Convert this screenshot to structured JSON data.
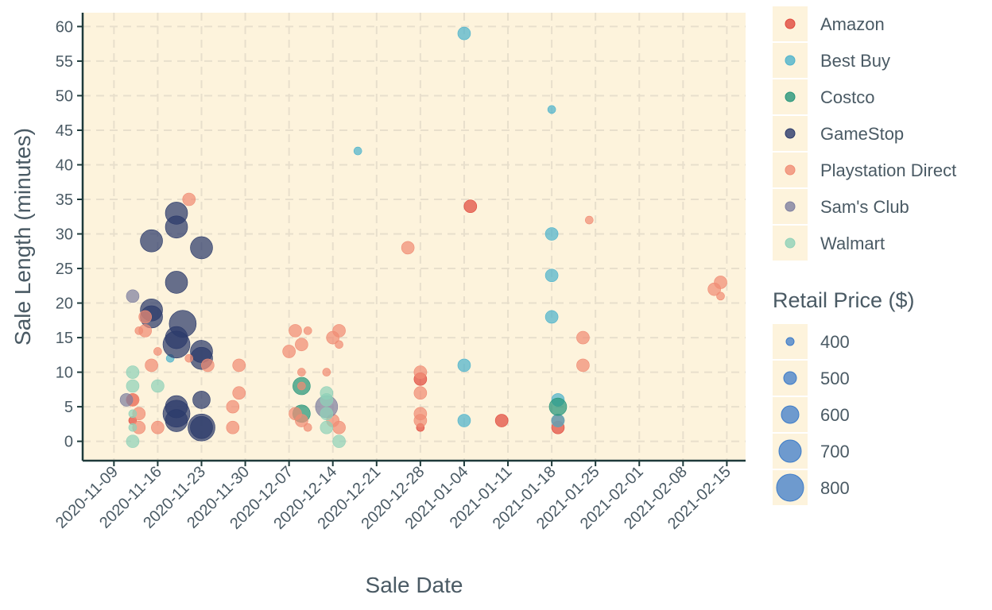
{
  "chart_data": {
    "type": "scatter",
    "title": "",
    "xlabel": "Sale Date",
    "ylabel": "Sale Length (minutes)",
    "x_type": "date",
    "xlim": [
      "2020-11-04",
      "2021-02-18"
    ],
    "ylim": [
      -2.8,
      62
    ],
    "x_ticks": [
      "2020-11-09",
      "2020-11-16",
      "2020-11-23",
      "2020-11-30",
      "2020-12-07",
      "2020-12-14",
      "2020-12-21",
      "2020-12-28",
      "2021-01-04",
      "2021-01-11",
      "2021-01-18",
      "2021-01-25",
      "2021-02-01",
      "2021-02-08",
      "2021-02-15"
    ],
    "y_ticks": [
      0,
      5,
      10,
      15,
      20,
      25,
      30,
      35,
      40,
      45,
      50,
      55,
      60
    ],
    "grid": true,
    "legend_position": "right",
    "color_legend_title": "",
    "size_legend_title": "Retail Price ($)",
    "size_legend": [
      400,
      500,
      600,
      700,
      800
    ],
    "size_legend_color": "#3d7cc9",
    "background_color": "#fdf3dc",
    "series": [
      {
        "name": "Amazon",
        "color": "#e0493d",
        "points": [
          {
            "x": "2020-11-12",
            "y": 6,
            "price": 500
          },
          {
            "x": "2020-11-12",
            "y": 3,
            "price": 400
          },
          {
            "x": "2020-12-28",
            "y": 9,
            "price": 500
          },
          {
            "x": "2020-12-28",
            "y": 2,
            "price": 400
          },
          {
            "x": "2021-01-05",
            "y": 34,
            "price": 500
          },
          {
            "x": "2021-01-10",
            "y": 3,
            "price": 500
          },
          {
            "x": "2021-01-19",
            "y": 3,
            "price": 500
          },
          {
            "x": "2021-01-19",
            "y": 2,
            "price": 500
          }
        ]
      },
      {
        "name": "Best Buy",
        "color": "#4db3cc",
        "points": [
          {
            "x": "2021-01-04",
            "y": 59,
            "price": 500
          },
          {
            "x": "2020-12-18",
            "y": 42,
            "price": 400
          },
          {
            "x": "2021-01-18",
            "y": 48,
            "price": 400
          },
          {
            "x": "2021-01-18",
            "y": 30,
            "price": 500
          },
          {
            "x": "2021-01-18",
            "y": 24,
            "price": 500
          },
          {
            "x": "2021-01-18",
            "y": 18,
            "price": 500
          },
          {
            "x": "2021-01-04",
            "y": 11,
            "price": 500
          },
          {
            "x": "2021-01-04",
            "y": 3,
            "price": 500
          },
          {
            "x": "2021-01-19",
            "y": 6,
            "price": 500
          },
          {
            "x": "2021-01-19",
            "y": 3,
            "price": 500
          },
          {
            "x": "2020-11-18",
            "y": 12,
            "price": 400
          }
        ]
      },
      {
        "name": "Costco",
        "color": "#26957a",
        "points": [
          {
            "x": "2020-12-09",
            "y": 8,
            "price": 600
          },
          {
            "x": "2020-12-09",
            "y": 4,
            "price": 600
          },
          {
            "x": "2021-01-19",
            "y": 5,
            "price": 600
          }
        ]
      },
      {
        "name": "GameStop",
        "color": "#2b3a6b",
        "points": [
          {
            "x": "2020-11-19",
            "y": 33,
            "price": 700
          },
          {
            "x": "2020-11-19",
            "y": 31,
            "price": 700
          },
          {
            "x": "2020-11-15",
            "y": 29,
            "price": 700
          },
          {
            "x": "2020-11-23",
            "y": 28,
            "price": 700
          },
          {
            "x": "2020-11-19",
            "y": 23,
            "price": 700
          },
          {
            "x": "2020-11-15",
            "y": 19,
            "price": 700
          },
          {
            "x": "2020-11-15",
            "y": 18,
            "price": 700
          },
          {
            "x": "2020-11-20",
            "y": 17,
            "price": 800
          },
          {
            "x": "2020-11-19",
            "y": 15,
            "price": 700
          },
          {
            "x": "2020-11-19",
            "y": 14,
            "price": 800
          },
          {
            "x": "2020-11-23",
            "y": 13,
            "price": 700
          },
          {
            "x": "2020-11-23",
            "y": 12,
            "price": 700
          },
          {
            "x": "2020-11-23",
            "y": 6,
            "price": 600
          },
          {
            "x": "2020-11-19",
            "y": 5,
            "price": 700
          },
          {
            "x": "2020-11-19",
            "y": 4,
            "price": 800
          },
          {
            "x": "2020-11-19",
            "y": 3,
            "price": 700
          },
          {
            "x": "2020-11-23",
            "y": 2,
            "price": 800
          },
          {
            "x": "2020-11-23",
            "y": 2,
            "price": 700
          }
        ]
      },
      {
        "name": "Playstation Direct",
        "color": "#f08c74",
        "points": [
          {
            "x": "2020-11-21",
            "y": 35,
            "price": 500
          },
          {
            "x": "2020-12-26",
            "y": 28,
            "price": 500
          },
          {
            "x": "2021-01-24",
            "y": 32,
            "price": 400
          },
          {
            "x": "2021-02-13",
            "y": 22,
            "price": 500
          },
          {
            "x": "2021-02-14",
            "y": 23,
            "price": 500
          },
          {
            "x": "2021-02-14",
            "y": 21,
            "price": 400
          },
          {
            "x": "2020-11-14",
            "y": 18,
            "price": 500
          },
          {
            "x": "2020-11-13",
            "y": 16,
            "price": 400
          },
          {
            "x": "2020-11-14",
            "y": 16,
            "price": 500
          },
          {
            "x": "2020-11-16",
            "y": 13,
            "price": 400
          },
          {
            "x": "2020-11-21",
            "y": 12,
            "price": 400
          },
          {
            "x": "2020-11-15",
            "y": 11,
            "price": 500
          },
          {
            "x": "2020-11-24",
            "y": 11,
            "price": 500
          },
          {
            "x": "2020-11-29",
            "y": 11,
            "price": 500
          },
          {
            "x": "2020-12-08",
            "y": 16,
            "price": 500
          },
          {
            "x": "2020-12-10",
            "y": 16,
            "price": 400
          },
          {
            "x": "2020-12-09",
            "y": 14,
            "price": 500
          },
          {
            "x": "2020-12-07",
            "y": 13,
            "price": 500
          },
          {
            "x": "2020-12-15",
            "y": 16,
            "price": 500
          },
          {
            "x": "2020-12-14",
            "y": 15,
            "price": 500
          },
          {
            "x": "2020-12-15",
            "y": 14,
            "price": 400
          },
          {
            "x": "2020-12-13",
            "y": 10,
            "price": 400
          },
          {
            "x": "2020-12-09",
            "y": 10,
            "price": 400
          },
          {
            "x": "2020-12-09",
            "y": 8,
            "price": 400
          },
          {
            "x": "2020-11-29",
            "y": 7,
            "price": 500
          },
          {
            "x": "2020-11-28",
            "y": 5,
            "price": 500
          },
          {
            "x": "2020-11-28",
            "y": 2,
            "price": 500
          },
          {
            "x": "2020-12-08",
            "y": 4,
            "price": 500
          },
          {
            "x": "2020-12-09",
            "y": 3,
            "price": 500
          },
          {
            "x": "2020-12-10",
            "y": 2,
            "price": 400
          },
          {
            "x": "2020-12-14",
            "y": 3,
            "price": 500
          },
          {
            "x": "2020-12-15",
            "y": 2,
            "price": 500
          },
          {
            "x": "2020-11-16",
            "y": 2,
            "price": 500
          },
          {
            "x": "2020-11-12",
            "y": 6,
            "price": 500
          },
          {
            "x": "2020-11-13",
            "y": 4,
            "price": 500
          },
          {
            "x": "2020-11-13",
            "y": 2,
            "price": 500
          },
          {
            "x": "2020-12-28",
            "y": 10,
            "price": 500
          },
          {
            "x": "2020-12-28",
            "y": 7,
            "price": 500
          },
          {
            "x": "2020-12-28",
            "y": 4,
            "price": 500
          },
          {
            "x": "2020-12-28",
            "y": 3,
            "price": 500
          },
          {
            "x": "2021-01-23",
            "y": 15,
            "price": 500
          },
          {
            "x": "2021-01-23",
            "y": 11,
            "price": 500
          }
        ]
      },
      {
        "name": "Sam's Club",
        "color": "#7e7fa0",
        "points": [
          {
            "x": "2020-11-12",
            "y": 21,
            "price": 500
          },
          {
            "x": "2020-11-11",
            "y": 6,
            "price": 500
          },
          {
            "x": "2020-12-13",
            "y": 5,
            "price": 700
          }
        ]
      },
      {
        "name": "Walmart",
        "color": "#8fd1b8",
        "points": [
          {
            "x": "2020-11-12",
            "y": 10,
            "price": 500
          },
          {
            "x": "2020-11-12",
            "y": 8,
            "price": 500
          },
          {
            "x": "2020-11-12",
            "y": 4,
            "price": 400
          },
          {
            "x": "2020-11-12",
            "y": 2,
            "price": 400
          },
          {
            "x": "2020-11-12",
            "y": 0,
            "price": 500
          },
          {
            "x": "2020-11-16",
            "y": 8,
            "price": 500
          },
          {
            "x": "2020-12-13",
            "y": 7,
            "price": 500
          },
          {
            "x": "2020-12-13",
            "y": 6,
            "price": 500
          },
          {
            "x": "2020-12-13",
            "y": 4,
            "price": 500
          },
          {
            "x": "2020-12-13",
            "y": 2,
            "price": 500
          },
          {
            "x": "2020-12-15",
            "y": 0,
            "price": 500
          }
        ]
      }
    ]
  }
}
